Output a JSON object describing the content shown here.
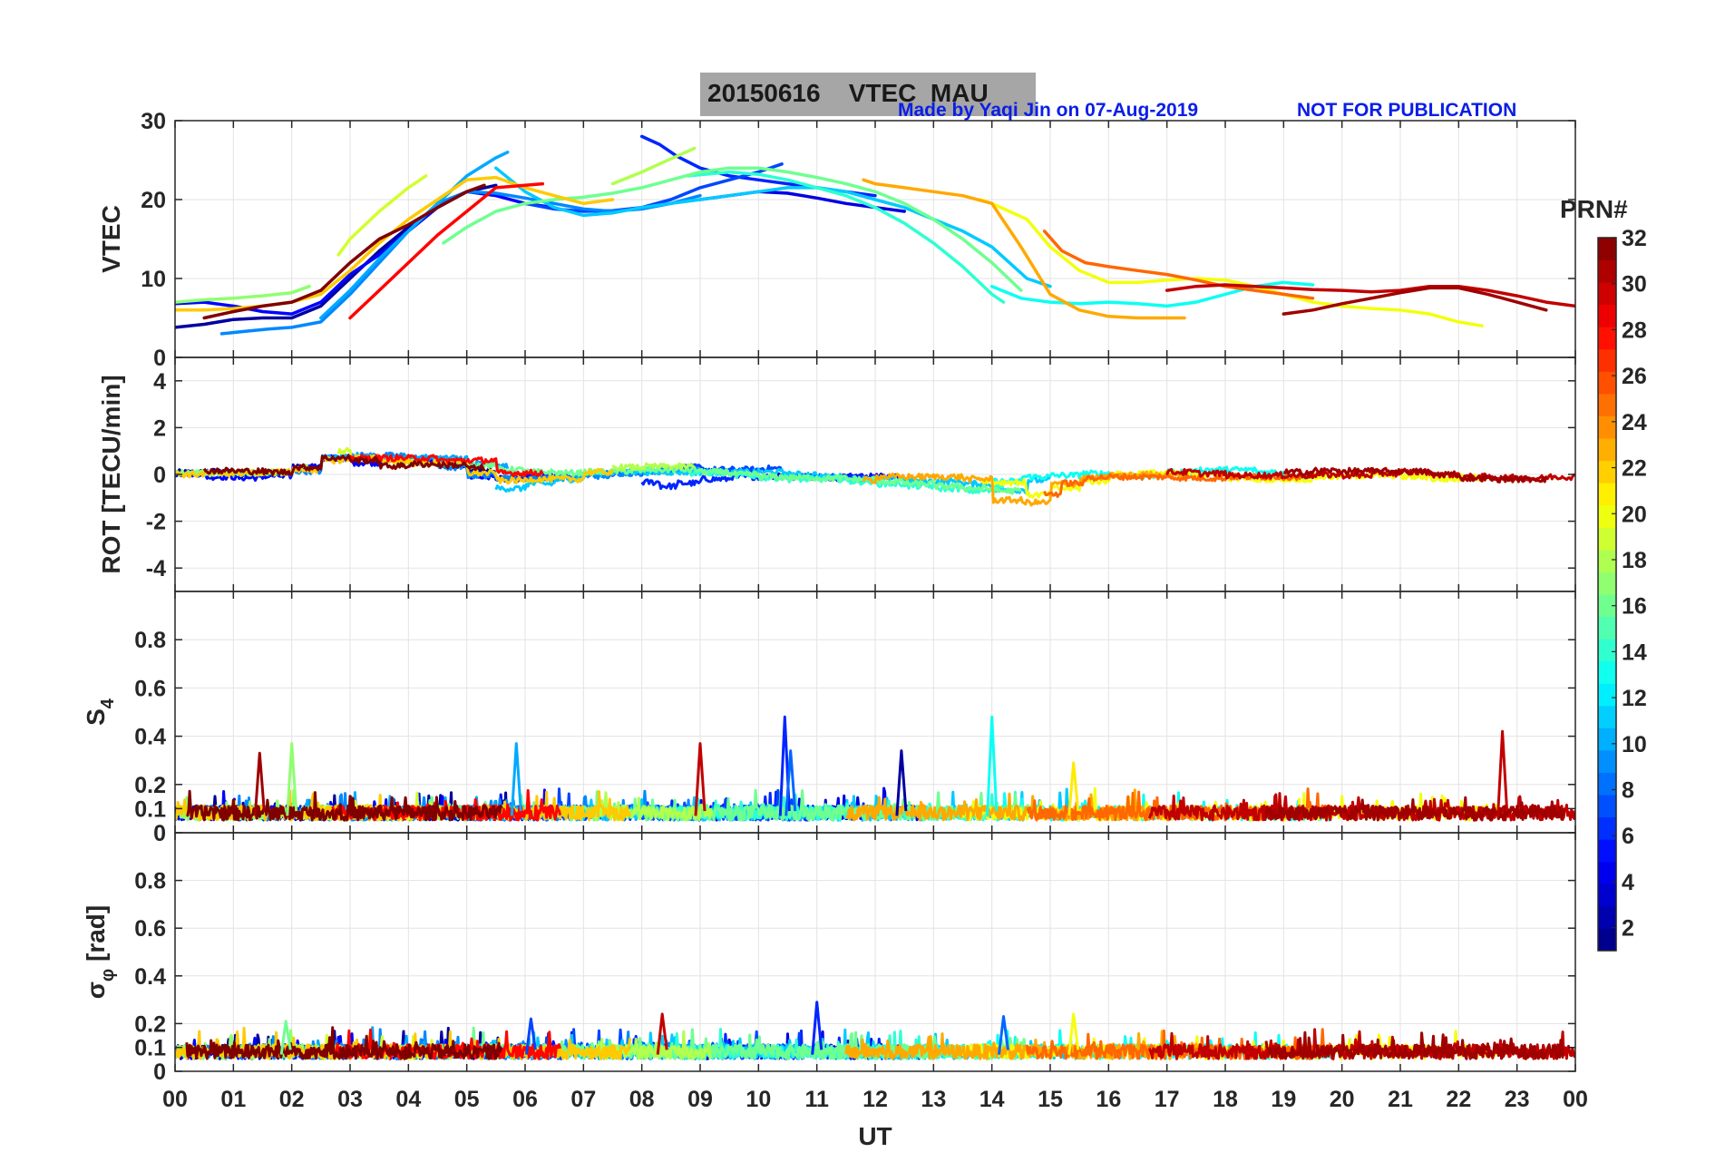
{
  "header": {
    "title": "20150616    VTEC  MAU",
    "credit": "Made by Yaqi Jin on 07-Aug-2019",
    "notice": "NOT FOR PUBLICATION"
  },
  "colorbar": {
    "title": "PRN#",
    "ticks": [
      "2",
      "4",
      "6",
      "8",
      "10",
      "12",
      "14",
      "16",
      "18",
      "20",
      "22",
      "24",
      "26",
      "28",
      "30",
      "32"
    ],
    "range": [
      1,
      32
    ]
  },
  "chart_data": [
    {
      "type": "line",
      "panel": "vtec",
      "ylabel": "VTEC",
      "ylim": [
        0,
        30
      ],
      "yticks": [
        "0",
        "10",
        "20",
        "30"
      ],
      "xlim": [
        0,
        24
      ],
      "series": [
        {
          "name": "PRN 2",
          "prn": 2,
          "x": [
            0.0,
            0.5,
            1.0,
            1.5,
            2.0,
            2.5,
            3.0,
            3.5,
            4.0,
            4.5,
            5.0,
            5.5
          ],
          "y": [
            3.8,
            4.2,
            4.8,
            5.0,
            5.0,
            6.5,
            10.0,
            13.5,
            16.5,
            19.0,
            21.0,
            21.8
          ]
        },
        {
          "name": "PRN 4",
          "prn": 4,
          "x": [
            9.0,
            9.5,
            10.0,
            10.5,
            11.0,
            11.5,
            12.0,
            12.5
          ],
          "y": [
            20.0,
            20.5,
            21.0,
            20.8,
            20.2,
            19.5,
            19.0,
            18.5
          ]
        },
        {
          "name": "PRN 5",
          "prn": 5,
          "x": [
            0.0,
            0.5,
            1.0,
            1.5,
            2.0,
            2.5,
            3.0,
            3.5,
            4.0,
            4.5,
            5.0,
            5.5,
            6.0,
            6.5
          ],
          "y": [
            6.8,
            7.0,
            6.5,
            5.8,
            5.5,
            7.0,
            10.5,
            13.0,
            16.0,
            19.0,
            21.0,
            20.5,
            19.5,
            19.0
          ]
        },
        {
          "name": "PRN 6",
          "prn": 6,
          "x": [
            8.0,
            8.3,
            8.6,
            9.0,
            9.5,
            10.0,
            10.5,
            11.0,
            11.5,
            12.0
          ],
          "y": [
            28.0,
            27.0,
            25.5,
            24.0,
            23.0,
            22.5,
            22.0,
            21.5,
            21.0,
            20.5
          ]
        },
        {
          "name": "PRN 7",
          "prn": 7,
          "x": [
            6.0,
            6.5,
            7.0,
            7.5,
            8.0,
            8.5,
            9.0,
            9.5,
            10.0,
            10.4
          ],
          "y": [
            19.5,
            18.8,
            18.5,
            18.6,
            19.0,
            20.0,
            21.5,
            22.5,
            23.5,
            24.5
          ]
        },
        {
          "name": "PRN 9",
          "prn": 9,
          "x": [
            0.8,
            1.2,
            1.6,
            2.0,
            2.5,
            3.0,
            3.5,
            4.0,
            4.5,
            5.0,
            5.5,
            6.0,
            6.5,
            7.0,
            7.5,
            8.0,
            8.5,
            9.0
          ],
          "y": [
            3.0,
            3.3,
            3.6,
            3.8,
            4.5,
            8.0,
            12.0,
            16.0,
            19.5,
            21.0,
            20.8,
            20.2,
            19.5,
            18.8,
            18.5,
            18.8,
            19.5,
            20.5
          ]
        },
        {
          "name": "PRN 10",
          "prn": 10,
          "x": [
            2.5,
            3.0,
            3.5,
            4.0,
            4.5,
            5.0,
            5.5,
            5.7
          ],
          "y": [
            5.0,
            8.5,
            12.5,
            16.0,
            19.5,
            23.0,
            25.3,
            26.0
          ]
        },
        {
          "name": "PRN 11",
          "prn": 11,
          "x": [
            5.5,
            6.0,
            6.5,
            7.0,
            7.5,
            8.0,
            8.5,
            9.0,
            9.5,
            10.0,
            10.5,
            11.0,
            11.5,
            12.0,
            12.5,
            13.0,
            13.5,
            14.0,
            14.3,
            14.6,
            15.0
          ],
          "y": [
            24.0,
            21.0,
            19.0,
            18.0,
            18.3,
            19.0,
            19.5,
            20.0,
            20.5,
            21.0,
            21.5,
            21.5,
            21.0,
            20.0,
            19.0,
            17.5,
            16.0,
            14.0,
            12.0,
            10.0,
            9.0
          ]
        },
        {
          "name": "PRN 13",
          "prn": 13,
          "x": [
            14.0,
            14.5,
            15.0,
            15.5,
            16.0,
            16.5,
            17.0,
            17.5,
            18.0,
            18.5,
            19.0,
            19.5
          ],
          "y": [
            9.0,
            7.5,
            7.0,
            6.8,
            7.0,
            6.8,
            6.5,
            7.0,
            8.0,
            9.0,
            9.5,
            9.2
          ]
        },
        {
          "name": "PRN 14",
          "prn": 14,
          "x": [
            8.8,
            9.5,
            10.0,
            10.5,
            11.0,
            11.5,
            12.0,
            12.5,
            13.0,
            13.5,
            14.0,
            14.2
          ],
          "y": [
            23.0,
            23.5,
            23.2,
            22.5,
            21.5,
            20.5,
            19.0,
            17.0,
            14.5,
            11.5,
            8.0,
            7.0
          ]
        },
        {
          "name": "PRN 16",
          "prn": 16,
          "x": [
            4.6,
            5.0,
            5.5,
            6.0,
            6.5,
            7.0,
            7.5,
            8.0,
            8.5,
            9.0,
            9.5,
            10.0,
            10.5,
            11.0,
            11.5,
            12.0,
            12.5,
            13.0,
            13.5,
            14.0,
            14.5
          ],
          "y": [
            14.5,
            16.5,
            18.5,
            19.5,
            20.0,
            20.3,
            20.8,
            21.5,
            22.5,
            23.5,
            24.0,
            24.0,
            23.5,
            22.8,
            22.0,
            21.0,
            19.5,
            17.5,
            15.0,
            12.0,
            8.5
          ]
        },
        {
          "name": "PRN 17",
          "prn": 17,
          "x": [
            0.0,
            0.5,
            1.0,
            1.5,
            2.0,
            2.3
          ],
          "y": [
            7.0,
            7.3,
            7.5,
            7.8,
            8.2,
            9.0
          ]
        },
        {
          "name": "PRN 18",
          "prn": 18,
          "x": [
            7.5,
            8.0,
            8.3,
            8.6,
            8.9
          ],
          "y": [
            22.0,
            23.5,
            24.5,
            25.5,
            26.5
          ]
        },
        {
          "name": "PRN 19",
          "prn": 19,
          "x": [
            2.8,
            3.0,
            3.5,
            4.0,
            4.3
          ],
          "y": [
            13.0,
            15.0,
            18.5,
            21.5,
            23.0
          ]
        },
        {
          "name": "PRN 20",
          "prn": 20,
          "x": [
            13.8,
            14.0,
            14.3,
            14.6,
            15.0,
            15.5,
            16.0,
            16.5,
            17.0,
            17.5,
            18.0,
            18.5,
            19.0,
            19.5,
            20.0,
            20.5,
            21.0,
            21.5,
            22.0,
            22.4
          ],
          "y": [
            20.0,
            19.5,
            18.5,
            17.5,
            14.0,
            11.0,
            9.5,
            9.5,
            9.8,
            10.0,
            9.8,
            9.0,
            8.0,
            7.0,
            6.5,
            6.2,
            6.0,
            5.5,
            4.5,
            4.0
          ]
        },
        {
          "name": "PRN 22",
          "prn": 22,
          "x": [
            0.0,
            0.5,
            1.0,
            1.5,
            2.0,
            2.5,
            3.0,
            3.5,
            4.0,
            4.5,
            5.0,
            5.5,
            6.0,
            6.5,
            7.0,
            7.5
          ],
          "y": [
            6.0,
            6.0,
            6.2,
            6.5,
            7.0,
            8.0,
            11.0,
            14.5,
            17.5,
            20.0,
            22.5,
            22.8,
            21.5,
            20.5,
            19.5,
            20.0
          ]
        },
        {
          "name": "PRN 23",
          "prn": 23,
          "x": [
            11.8,
            12.0,
            12.5,
            13.0,
            13.5,
            14.0,
            14.5,
            15.0,
            15.5,
            16.0,
            16.5,
            17.0,
            17.3
          ],
          "y": [
            22.5,
            22.0,
            21.5,
            21.0,
            20.5,
            19.5,
            14.0,
            8.0,
            6.0,
            5.2,
            5.0,
            5.0,
            5.0
          ]
        },
        {
          "name": "PRN 25",
          "prn": 25,
          "x": [
            14.9,
            15.2,
            15.6,
            16.0,
            16.5,
            17.0,
            17.5,
            18.0,
            18.5,
            19.0,
            19.5
          ],
          "y": [
            16.0,
            13.5,
            12.0,
            11.5,
            11.0,
            10.5,
            9.8,
            9.0,
            8.5,
            8.0,
            7.5
          ]
        },
        {
          "name": "PRN 28",
          "prn": 28,
          "x": [
            3.0,
            3.5,
            4.0,
            4.5,
            5.0,
            5.5,
            6.0,
            6.3
          ],
          "y": [
            5.0,
            8.5,
            12.0,
            15.5,
            18.5,
            21.5,
            21.8,
            22.0
          ]
        },
        {
          "name": "PRN 30",
          "prn": 30,
          "x": [
            17.0,
            17.5,
            18.0,
            18.5,
            19.0,
            19.5,
            20.0,
            20.5,
            21.0,
            21.5,
            22.0,
            22.5,
            23.0,
            23.5,
            24.0
          ],
          "y": [
            8.5,
            9.0,
            9.2,
            9.0,
            8.8,
            8.6,
            8.5,
            8.3,
            8.5,
            9.0,
            9.0,
            8.5,
            7.8,
            7.0,
            6.5
          ]
        },
        {
          "name": "PRN 32",
          "prn": 32,
          "x": [
            0.5,
            1.0,
            1.5,
            2.0,
            2.5,
            3.0,
            3.5,
            4.0,
            4.5,
            5.0,
            5.3
          ],
          "y": [
            5.0,
            5.8,
            6.5,
            7.0,
            8.5,
            12.0,
            15.0,
            16.8,
            19.0,
            21.0,
            21.8
          ]
        },
        {
          "name": "PRN 31",
          "prn": 31,
          "x": [
            19.0,
            19.5,
            20.0,
            20.5,
            21.0,
            21.5,
            22.0,
            22.5,
            23.0,
            23.5
          ],
          "y": [
            5.5,
            6.0,
            6.8,
            7.5,
            8.2,
            8.8,
            8.8,
            8.0,
            7.0,
            6.0
          ]
        }
      ]
    },
    {
      "type": "line",
      "panel": "rot",
      "ylabel": "ROT [TECU/min]",
      "ylim": [
        -5,
        5
      ],
      "yticks": [
        "-4",
        "-2",
        "0",
        "2",
        "4"
      ],
      "xlim": [
        0,
        24
      ],
      "note": "All PRN traces stay near 0 with excursions below about ±1 TECU/min"
    },
    {
      "type": "line",
      "panel": "s4",
      "ylabel": "S4",
      "ylabel_main": "S",
      "ylabel_sub": "4",
      "ylim": [
        0,
        1
      ],
      "yticks": [
        "0",
        "0.1",
        "0.2",
        "0.4",
        "0.6",
        "0.8"
      ],
      "xlim": [
        0,
        24
      ],
      "background_level": 0.07,
      "spikes": [
        {
          "prn": 17,
          "x": 2.0,
          "y": 0.37
        },
        {
          "prn": 31,
          "x": 1.45,
          "y": 0.33
        },
        {
          "prn": 10,
          "x": 5.85,
          "y": 0.37
        },
        {
          "prn": 30,
          "x": 9.0,
          "y": 0.37
        },
        {
          "prn": 6,
          "x": 10.45,
          "y": 0.48
        },
        {
          "prn": 8,
          "x": 10.55,
          "y": 0.34
        },
        {
          "prn": 13,
          "x": 14.0,
          "y": 0.48
        },
        {
          "prn": 2,
          "x": 12.45,
          "y": 0.34
        },
        {
          "prn": 30,
          "x": 22.75,
          "y": 0.42
        },
        {
          "prn": 21,
          "x": 15.4,
          "y": 0.29
        }
      ]
    },
    {
      "type": "line",
      "panel": "sigma_phi",
      "ylabel": "σφ [rad]",
      "ylabel_main": "σ",
      "ylabel_sub": "φ",
      "ylabel_unit": "[rad]",
      "ylim": [
        0,
        1
      ],
      "yticks": [
        "0",
        "0.1",
        "0.2",
        "0.4",
        "0.6",
        "0.8"
      ],
      "xlim": [
        0,
        24
      ],
      "background_level": 0.07,
      "spikes": [
        {
          "prn": 30,
          "x": 8.35,
          "y": 0.24
        },
        {
          "prn": 6,
          "x": 11.0,
          "y": 0.29
        },
        {
          "prn": 20,
          "x": 15.4,
          "y": 0.24
        },
        {
          "prn": 7,
          "x": 6.1,
          "y": 0.22
        },
        {
          "prn": 8,
          "x": 14.2,
          "y": 0.23
        },
        {
          "prn": 16,
          "x": 1.9,
          "y": 0.21
        }
      ]
    }
  ],
  "xaxis": {
    "title": "UT",
    "ticks": [
      "00",
      "01",
      "02",
      "03",
      "04",
      "05",
      "06",
      "07",
      "08",
      "09",
      "10",
      "11",
      "12",
      "13",
      "14",
      "15",
      "16",
      "17",
      "18",
      "19",
      "20",
      "21",
      "22",
      "23",
      "00"
    ]
  }
}
